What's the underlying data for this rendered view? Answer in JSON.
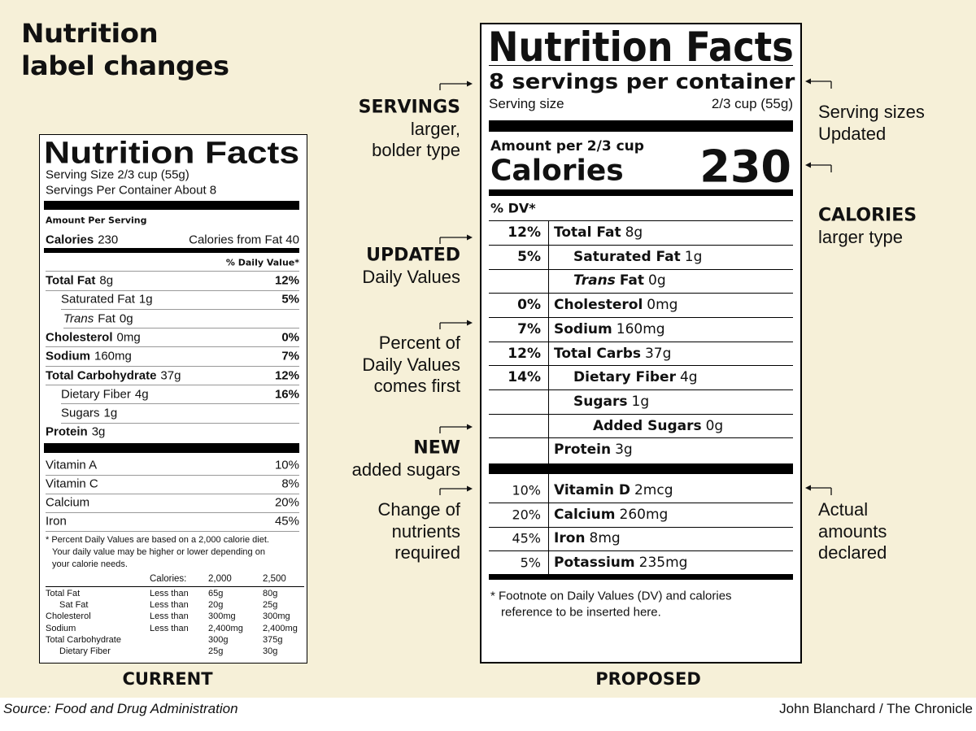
{
  "title": [
    "Nutrition",
    "label changes"
  ],
  "current": {
    "title": "Nutrition Facts",
    "serving_size": "Serving Size 2/3 cup (55g)",
    "servings": "Servings Per Container About 8",
    "amount_per": "Amount Per Serving",
    "calories_label": "Calories",
    "calories": "230",
    "calories_fat": "Calories from Fat 40",
    "dv_header": "% Daily Value*",
    "nutrients": [
      {
        "name": "Total Fat",
        "amount": "8g",
        "dv": "12%",
        "bold": true
      },
      {
        "name": "Saturated Fat",
        "amount": "1g",
        "dv": "5%",
        "indent": 1
      },
      {
        "name_italic": "Trans",
        "name": "Fat",
        "amount": "0g",
        "indent": 1
      },
      {
        "name": "Cholesterol",
        "amount": "0mg",
        "dv": "0%",
        "bold": true
      },
      {
        "name": "Sodium",
        "amount": "160mg",
        "dv": "7%",
        "bold": true
      },
      {
        "name": "Total Carbohydrate",
        "amount": "37g",
        "dv": "12%",
        "bold": true
      },
      {
        "name": "Dietary Fiber",
        "amount": "4g",
        "dv": "16%",
        "indent": 1
      },
      {
        "name": "Sugars",
        "amount": "1g",
        "indent": 1
      },
      {
        "name": "Protein",
        "amount": "3g",
        "bold": true
      }
    ],
    "vitamins": [
      {
        "name": "Vitamin A",
        "dv": "10%"
      },
      {
        "name": "Vitamin C",
        "dv": "8%"
      },
      {
        "name": "Calcium",
        "dv": "20%"
      },
      {
        "name": "Iron",
        "dv": "45%"
      }
    ],
    "footnote": [
      "* Percent Daily Values are based on a 2,000 calorie diet.",
      "Your daily value may be higher or lower depending on",
      "your calorie needs."
    ],
    "table": {
      "header": [
        "Calories:",
        "2,000",
        "2,500"
      ],
      "rows": [
        {
          "cells": [
            "Total Fat",
            "Less than",
            "65g",
            "80g"
          ]
        },
        {
          "cells": [
            "Sat Fat",
            "Less than",
            "20g",
            "25g"
          ],
          "indent": 1
        },
        {
          "cells": [
            "Cholesterol",
            "Less than",
            "300mg",
            "300mg"
          ]
        },
        {
          "cells": [
            "Sodium",
            "Less than",
            "2,400mg",
            "2,400mg"
          ]
        },
        {
          "cells": [
            "Total Carbohydrate",
            null,
            "300g",
            "375g"
          ]
        },
        {
          "cells": [
            "Dietary Fiber",
            null,
            "25g",
            "30g"
          ],
          "indent": 1
        }
      ]
    },
    "caption": "CURRENT"
  },
  "proposed": {
    "title": "Nutrition Facts",
    "servings": "8 servings per container",
    "serving_size_label": "Serving size",
    "serving_size": "2/3 cup (55g)",
    "amount_per": "Amount per 2/3 cup",
    "calories_label": "Calories",
    "calories": "230",
    "dv_header": "% DV*",
    "nutrients": [
      {
        "dv": "12%",
        "name": "Total Fat",
        "amount": "8g",
        "bold": true
      },
      {
        "dv": "5%",
        "name": "Saturated Fat",
        "amount": "1g",
        "indent": 1
      },
      {
        "name_italic": "Trans",
        "name": "Fat",
        "amount": "0g",
        "indent": 1
      },
      {
        "dv": "0%",
        "name": "Cholesterol",
        "amount": "0mg",
        "bold": true
      },
      {
        "dv": "7%",
        "name": "Sodium",
        "amount": "160mg",
        "bold": true
      },
      {
        "dv": "12%",
        "name": "Total Carbs",
        "amount": "37g",
        "bold": true
      },
      {
        "dv": "14%",
        "name": "Dietary Fiber",
        "amount": "4g",
        "indent": 1
      },
      {
        "name": "Sugars",
        "amount": "1g",
        "indent": 1
      },
      {
        "name": "Added Sugars",
        "amount": "0g",
        "indent": 2
      },
      {
        "name": "Protein",
        "amount": "3g",
        "bold": true
      }
    ],
    "vitamins": [
      {
        "dv": "10%",
        "name": "Vitamin D",
        "amount": "2mcg"
      },
      {
        "dv": "20%",
        "name": "Calcium",
        "amount": "260mg"
      },
      {
        "dv": "45%",
        "name": "Iron",
        "amount": "8mg"
      },
      {
        "dv": "5%",
        "name": "Potassium",
        "amount": "235mg"
      }
    ],
    "footnote": [
      "* Footnote on Daily Values (DV) and calories",
      "reference to be inserted here."
    ],
    "caption": "PROPOSED"
  },
  "annotations_left": [
    {
      "heading": "SERVINGS",
      "lines": [
        "larger,",
        "bolder type"
      ]
    },
    {
      "heading": "UPDATED",
      "lines": [
        "Daily Values"
      ]
    },
    {
      "lines": [
        "Percent of",
        "Daily Values",
        "comes first"
      ]
    },
    {
      "heading": "NEW",
      "lines": [
        "added sugars"
      ]
    },
    {
      "lines": [
        "Change of",
        "nutrients",
        "required"
      ]
    }
  ],
  "annotations_right": [
    {
      "lines": [
        "Serving sizes",
        "Updated"
      ]
    },
    {
      "heading": "CALORIES",
      "lines": [
        "larger type"
      ]
    },
    {
      "lines": [
        "Actual",
        "amounts",
        "declared"
      ]
    }
  ],
  "source": "Source: Food and Drug Administration",
  "credit": "John Blanchard / The Chronicle"
}
